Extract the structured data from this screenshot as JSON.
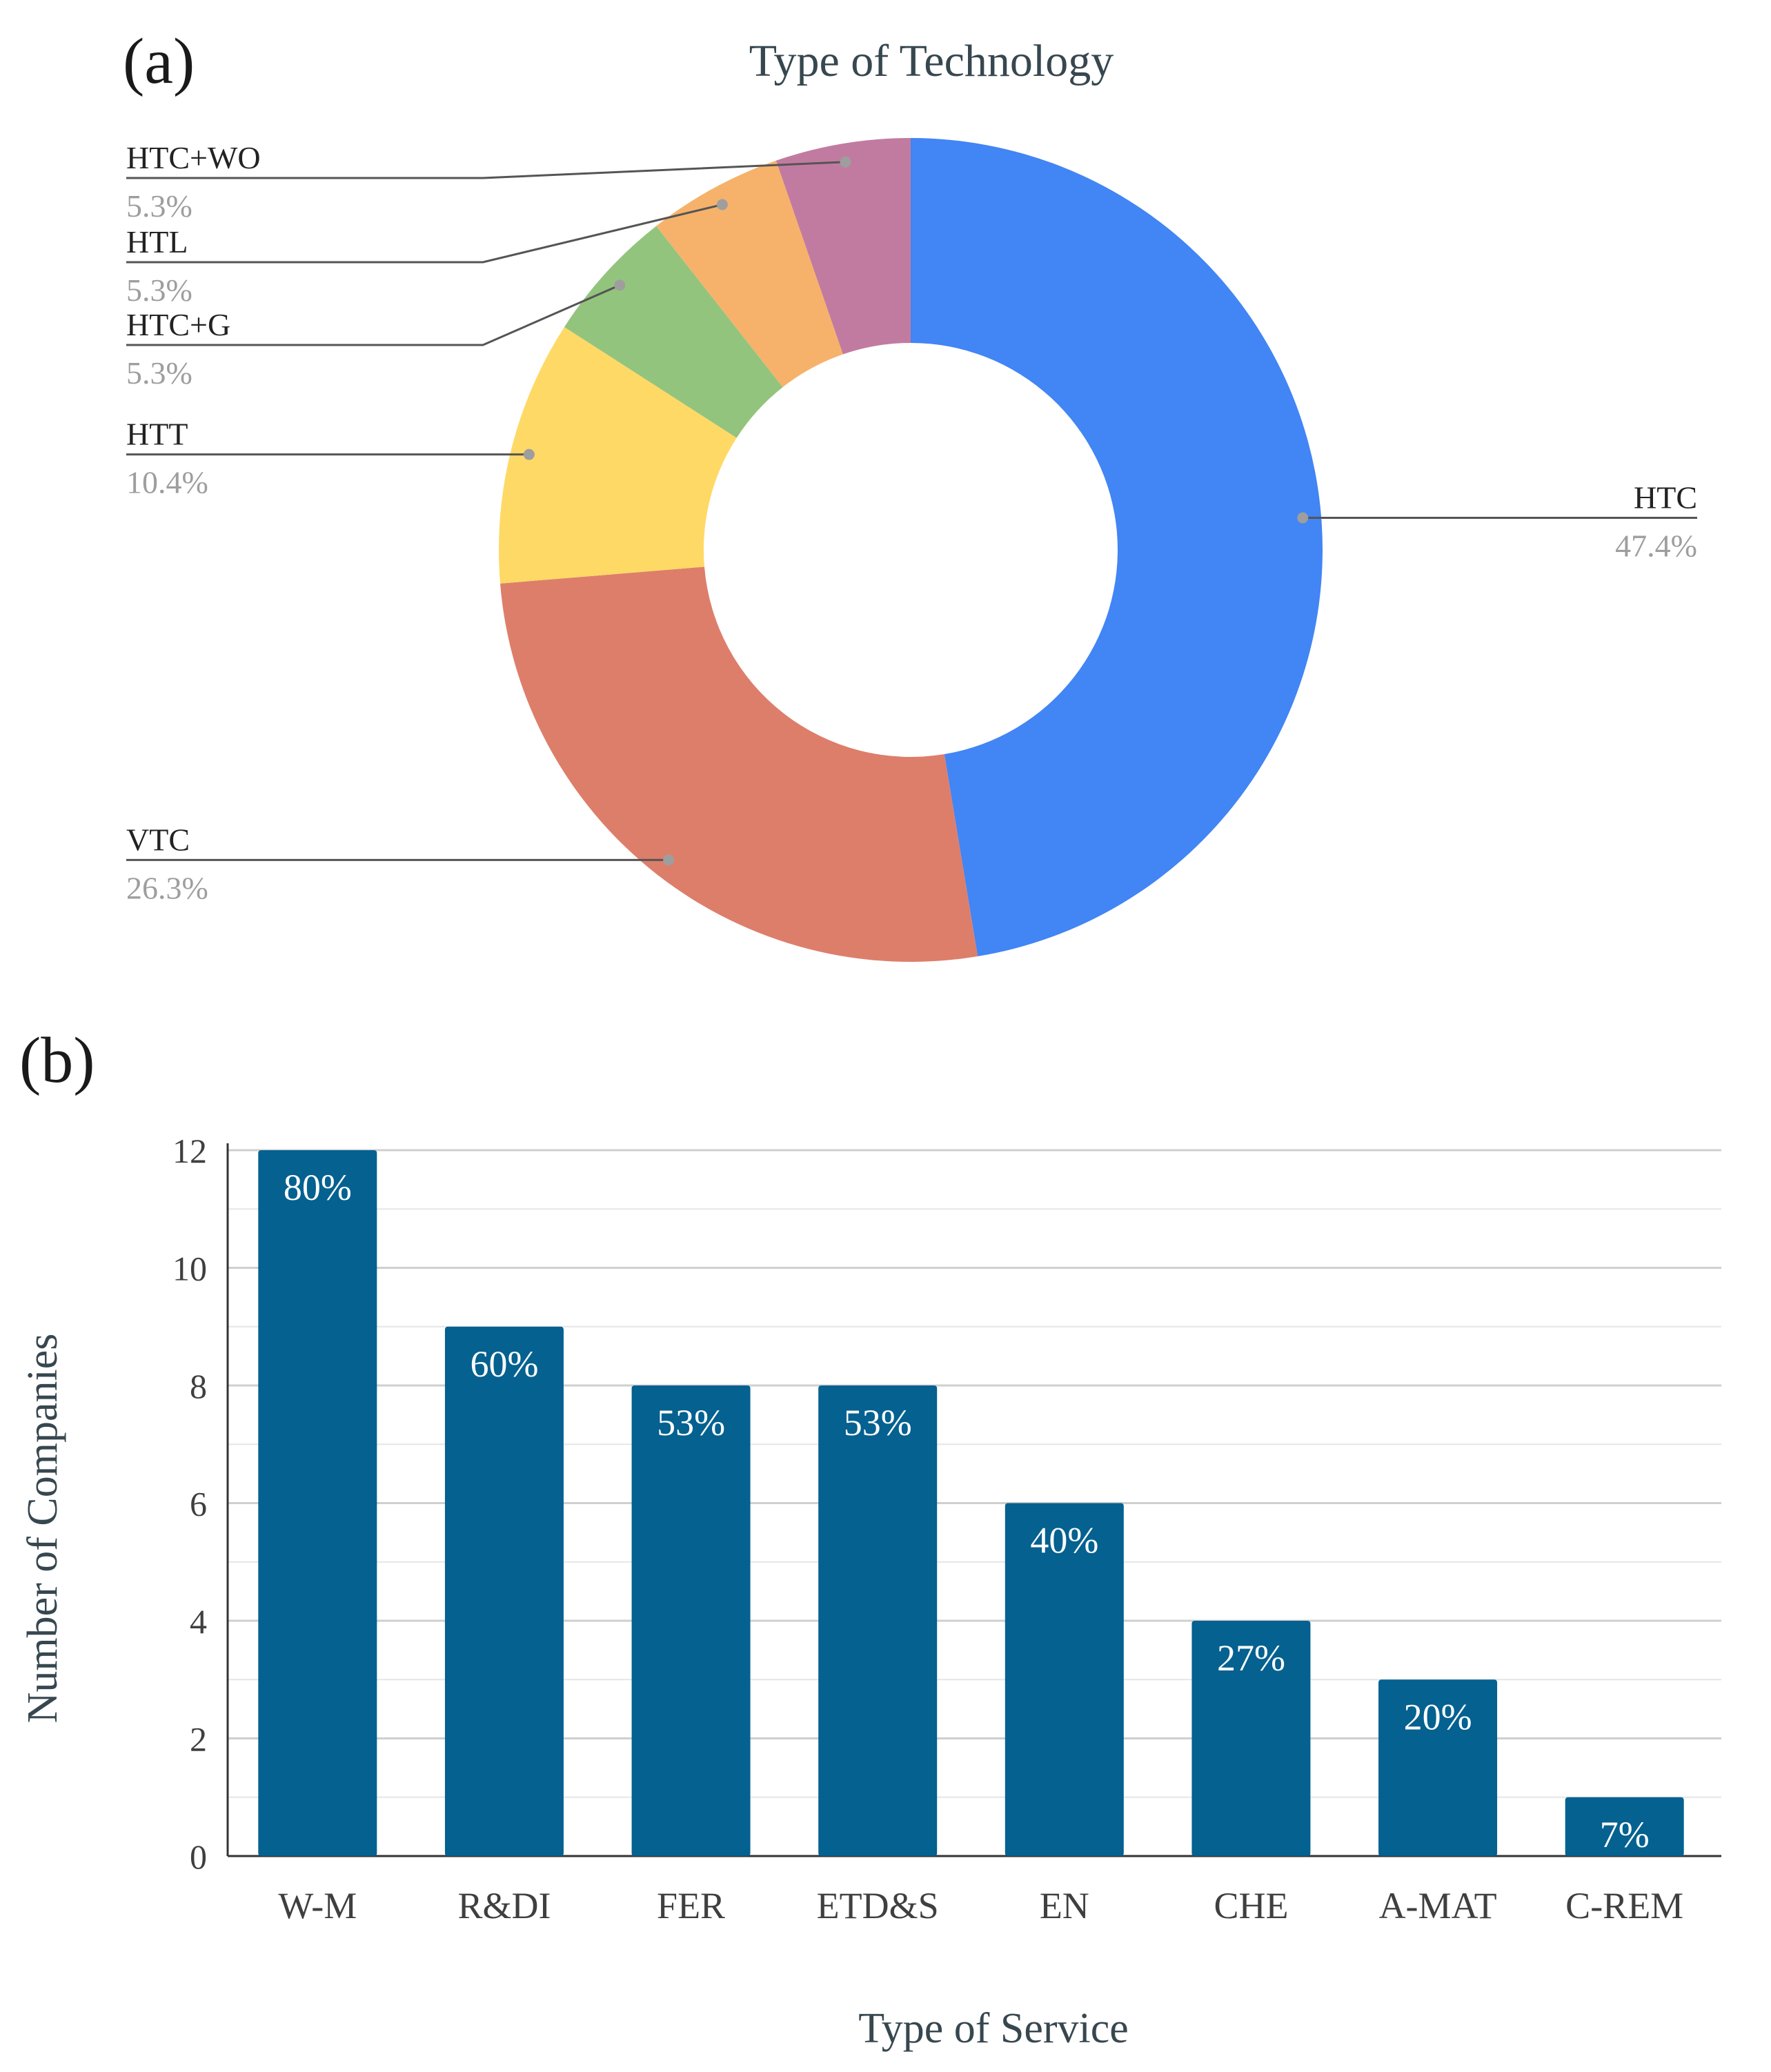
{
  "panel_labels": {
    "a": "(a)",
    "b": "(b)"
  },
  "colors": {
    "grid": "#d9d9d9",
    "axis": "#333333",
    "tick_text": "#3f3f3f",
    "title_text": "#37474f",
    "label_text": "#222222",
    "pct_text": "#9e9e9e",
    "leader": "#555555",
    "bar": "#046190",
    "bar_label": "#ffffff"
  },
  "chart_data": [
    {
      "type": "pie",
      "style": "donut",
      "title": "Type of Technology",
      "slices": [
        {
          "label": "HTC",
          "value": 47.4,
          "display": "47.4%",
          "color": "#4285f4",
          "label_side": "right"
        },
        {
          "label": "VTC",
          "value": 26.3,
          "display": "26.3%",
          "color": "#dd7e6b",
          "label_side": "left"
        },
        {
          "label": "HTT",
          "value": 10.4,
          "display": "10.4%",
          "color": "#ffd966",
          "label_side": "left"
        },
        {
          "label": "HTC+G",
          "value": 5.3,
          "display": "5.3%",
          "color": "#93c47d",
          "label_side": "left"
        },
        {
          "label": "HTL",
          "value": 5.3,
          "display": "5.3%",
          "color": "#f6b26b",
          "label_side": "left"
        },
        {
          "label": "HTC+WO",
          "value": 5.3,
          "display": "5.3%",
          "color": "#c27ba0",
          "label_side": "left"
        }
      ]
    },
    {
      "type": "bar",
      "title": "",
      "xlabel": "Type of Service",
      "ylabel": "Number of Companies",
      "categories": [
        "W-M",
        "R&DI",
        "FER",
        "ETD&S",
        "EN",
        "CHE",
        "A-MAT",
        "C-REM"
      ],
      "values": [
        12,
        9,
        8,
        8,
        6,
        4,
        3,
        1
      ],
      "data_labels": [
        "80%",
        "60%",
        "53%",
        "53%",
        "40%",
        "27%",
        "20%",
        "7%"
      ],
      "ylim": [
        0,
        12
      ],
      "yticks": [
        0,
        2,
        4,
        6,
        8,
        10,
        12
      ],
      "ytick_labels": [
        "0",
        "2",
        "4",
        "6",
        "8",
        "10",
        "12"
      ],
      "minor_grid_step": 1,
      "grid": true
    }
  ]
}
